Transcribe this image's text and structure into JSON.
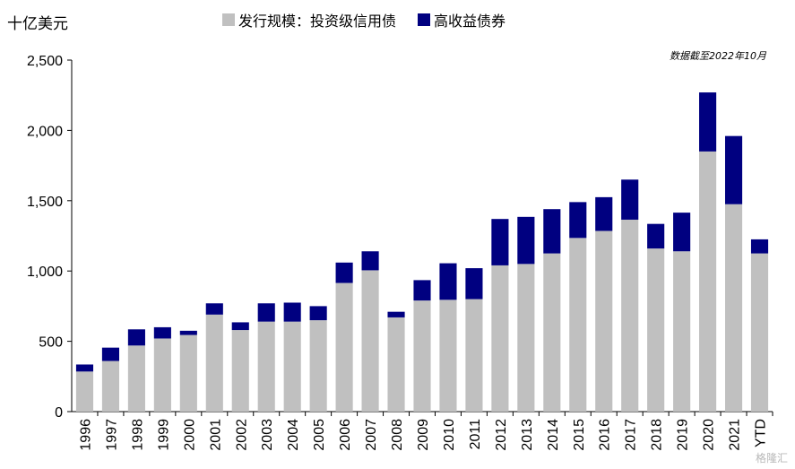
{
  "unit_label": "十亿美元",
  "note": "数据截至2022年10月",
  "watermark": "格隆汇",
  "colors": {
    "investment_grade": "#c0c0c0",
    "high_yield": "#000080",
    "axis": "#000000"
  },
  "chart_data": {
    "type": "bar",
    "stacked": true,
    "categories": [
      "1996",
      "1997",
      "1998",
      "1999",
      "2000",
      "2001",
      "2002",
      "2003",
      "2004",
      "2005",
      "2006",
      "2007",
      "2008",
      "2009",
      "2010",
      "2011",
      "2012",
      "2013",
      "2014",
      "2015",
      "2016",
      "2017",
      "2018",
      "2019",
      "2020",
      "2021",
      "YTD"
    ],
    "series": [
      {
        "name": "发行规模：投资级信用债",
        "values": [
          285,
          360,
          470,
          520,
          545,
          690,
          580,
          640,
          640,
          650,
          915,
          1005,
          670,
          790,
          795,
          800,
          1040,
          1050,
          1125,
          1235,
          1285,
          1365,
          1160,
          1140,
          1850,
          1475,
          1125
        ]
      },
      {
        "name": "高收益债券",
        "values": [
          50,
          95,
          115,
          80,
          30,
          80,
          55,
          130,
          135,
          100,
          145,
          135,
          40,
          145,
          260,
          220,
          330,
          335,
          315,
          255,
          240,
          285,
          175,
          275,
          420,
          485,
          100
        ]
      }
    ],
    "ylim": [
      0,
      2500
    ],
    "yticks": [
      0,
      500,
      1000,
      1500,
      2000,
      2500
    ],
    "ytick_labels": [
      "0",
      "500",
      "1,000",
      "1,500",
      "2,000",
      "2,500"
    ],
    "legend_position": "top",
    "grid": false
  }
}
